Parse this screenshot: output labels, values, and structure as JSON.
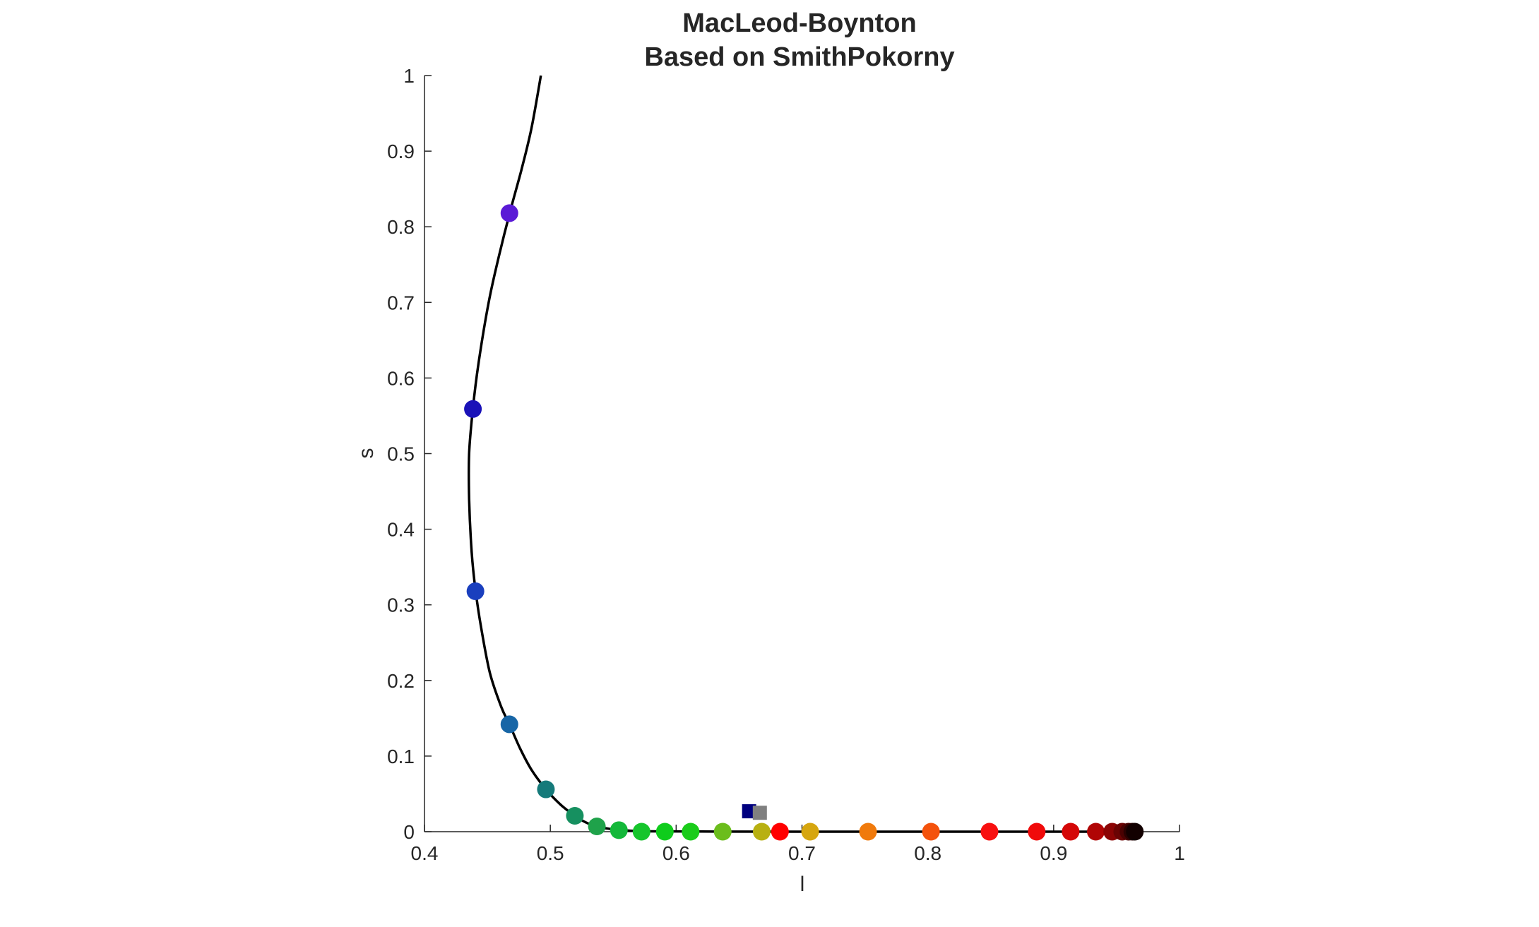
{
  "chart_data": {
    "type": "scatter",
    "title": [
      "MacLeod-Boynton",
      "Based on SmithPokorny"
    ],
    "xlabel": "l",
    "ylabel": "s",
    "xlim": [
      0.4,
      1.0
    ],
    "ylim": [
      0,
      1.0
    ],
    "xticks": [
      0.4,
      0.5,
      0.6,
      0.7,
      0.8,
      0.9,
      1.0
    ],
    "xtick_labels": [
      "0.4",
      "0.5",
      "0.6",
      "0.7",
      "0.8",
      "0.9",
      "1"
    ],
    "yticks": [
      0,
      0.1,
      0.2,
      0.3,
      0.4,
      0.5,
      0.6,
      0.7,
      0.8,
      0.9,
      1.0
    ],
    "ytick_labels": [
      "0",
      "0.1",
      "0.2",
      "0.3",
      "0.4",
      "0.5",
      "0.6",
      "0.7",
      "0.8",
      "0.9",
      "1"
    ],
    "grid": false,
    "spectrum_locus": {
      "color": "#000000",
      "points": [
        [
          0.4925,
          1.0
        ],
        [
          0.485,
          0.93
        ],
        [
          0.477,
          0.875
        ],
        [
          0.468,
          0.82
        ],
        [
          0.459,
          0.76
        ],
        [
          0.451,
          0.7
        ],
        [
          0.443,
          0.62
        ],
        [
          0.4385,
          0.56
        ],
        [
          0.4355,
          0.5
        ],
        [
          0.4355,
          0.44
        ],
        [
          0.4375,
          0.37
        ],
        [
          0.4405,
          0.32
        ],
        [
          0.445,
          0.27
        ],
        [
          0.452,
          0.21
        ],
        [
          0.461,
          0.165
        ],
        [
          0.4675,
          0.142
        ],
        [
          0.476,
          0.11
        ],
        [
          0.485,
          0.082
        ],
        [
          0.4965,
          0.056
        ],
        [
          0.508,
          0.036
        ],
        [
          0.5195,
          0.021
        ],
        [
          0.5285,
          0.012
        ],
        [
          0.537,
          0.007
        ],
        [
          0.546,
          0.004
        ],
        [
          0.5545,
          0.0025
        ],
        [
          0.565,
          0.0012
        ],
        [
          0.58,
          0.0005
        ],
        [
          0.62,
          0.0002
        ],
        [
          0.7,
          0.0
        ],
        [
          0.8,
          0.0
        ],
        [
          0.9,
          0.0
        ],
        [
          0.965,
          0.0
        ]
      ]
    },
    "series": [
      {
        "marker": "circle",
        "points": [
          {
            "l": 0.4675,
            "s": 0.818,
            "color": "#5a1ad6"
          },
          {
            "l": 0.4385,
            "s": 0.559,
            "color": "#1a12b8"
          },
          {
            "l": 0.4405,
            "s": 0.318,
            "color": "#1a3fbe"
          },
          {
            "l": 0.4675,
            "s": 0.142,
            "color": "#1866a6"
          },
          {
            "l": 0.4965,
            "s": 0.056,
            "color": "#157a7a"
          },
          {
            "l": 0.5195,
            "s": 0.021,
            "color": "#169060"
          },
          {
            "l": 0.537,
            "s": 0.007,
            "color": "#1fa24a"
          },
          {
            "l": 0.5545,
            "s": 0.002,
            "color": "#14b83a"
          },
          {
            "l": 0.5725,
            "s": 0.0,
            "color": "#16c52c"
          },
          {
            "l": 0.591,
            "s": 0.0,
            "color": "#0fcc1c"
          },
          {
            "l": 0.6115,
            "s": 0.0,
            "color": "#1acc1a"
          },
          {
            "l": 0.637,
            "s": 0.0,
            "color": "#6bbd1c"
          },
          {
            "l": 0.668,
            "s": 0.0,
            "color": "#b8b011"
          },
          {
            "l": 0.6825,
            "s": 0.0,
            "color": "#ff0000"
          },
          {
            "l": 0.7065,
            "s": 0.0,
            "color": "#d6a60f"
          },
          {
            "l": 0.7525,
            "s": 0.0,
            "color": "#f07a0c"
          },
          {
            "l": 0.8025,
            "s": 0.0,
            "color": "#f4520c"
          },
          {
            "l": 0.849,
            "s": 0.0,
            "color": "#f81010"
          },
          {
            "l": 0.8865,
            "s": 0.0,
            "color": "#f00a0a"
          },
          {
            "l": 0.9135,
            "s": 0.0,
            "color": "#d40707"
          },
          {
            "l": 0.9335,
            "s": 0.0,
            "color": "#b00505"
          },
          {
            "l": 0.9465,
            "s": 0.0,
            "color": "#8c0404"
          },
          {
            "l": 0.9545,
            "s": 0.0,
            "color": "#6a0303"
          },
          {
            "l": 0.9595,
            "s": 0.0,
            "color": "#4a0202"
          },
          {
            "l": 0.9625,
            "s": 0.0,
            "color": "#2a0101"
          },
          {
            "l": 0.9645,
            "s": 0.0,
            "color": "#120000"
          }
        ]
      },
      {
        "marker": "square",
        "points": [
          {
            "l": 0.658,
            "s": 0.027,
            "color": "#00007f"
          },
          {
            "l": 0.6665,
            "s": 0.025,
            "color": "#808080"
          }
        ]
      }
    ]
  }
}
